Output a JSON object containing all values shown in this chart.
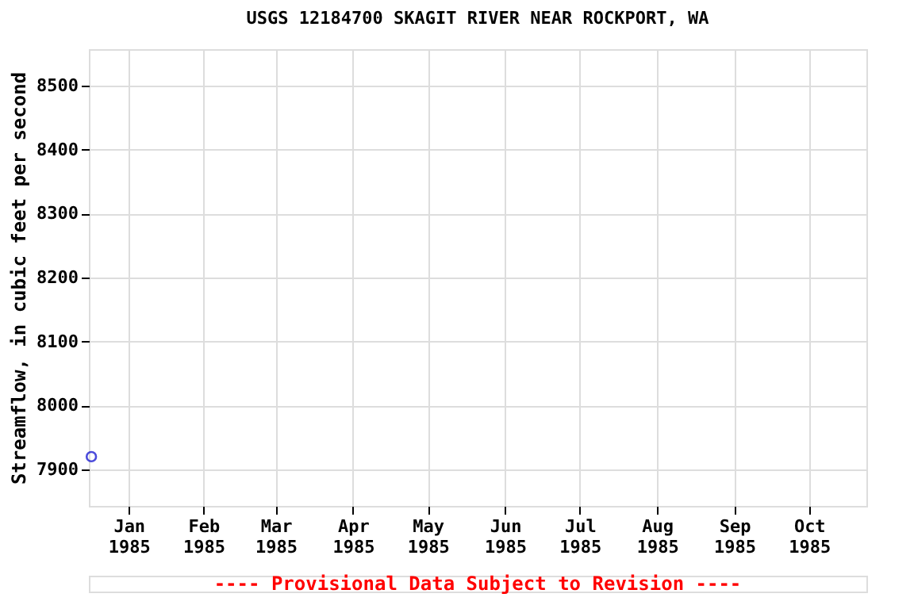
{
  "chart_data": {
    "type": "scatter",
    "title": "USGS 12184700 SKAGIT RIVER NEAR ROCKPORT, WA",
    "ylabel": "Streamflow, in cubic feet per second",
    "x": [
      "1985-01-01"
    ],
    "series": [
      {
        "color": "#0000cc",
        "values": [
          7920
        ]
      }
    ],
    "marker": "circle",
    "grid": true,
    "xlim": [
      "1984-12-31",
      "1985-11-08"
    ],
    "xticks": [
      {
        "value": "1985-01-16",
        "label": "Jan 1985"
      },
      {
        "value": "1985-02-15",
        "label": "Feb 1985"
      },
      {
        "value": "1985-03-16",
        "label": "Mar 1985"
      },
      {
        "value": "1985-04-16",
        "label": "Apr 1985"
      },
      {
        "value": "1985-05-16",
        "label": "May 1985"
      },
      {
        "value": "1985-06-16",
        "label": "Jun 1985"
      },
      {
        "value": "1985-07-16",
        "label": "Jul 1985"
      },
      {
        "value": "1985-08-16",
        "label": "Aug 1985"
      },
      {
        "value": "1985-09-16",
        "label": "Sep 1985"
      },
      {
        "value": "1985-10-16",
        "label": "Oct 1985"
      }
    ],
    "ylim": [
      7843,
      8557
    ],
    "yticks": [
      7900,
      8000,
      8100,
      8200,
      8300,
      8400,
      8500
    ],
    "annotations": [
      "---- Provisional Data Subject to Revision ----"
    ]
  }
}
